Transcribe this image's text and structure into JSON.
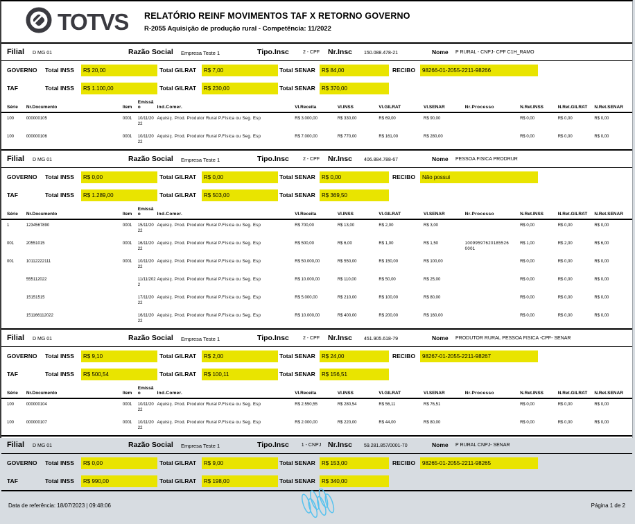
{
  "header": {
    "brand": "TOTVS",
    "title": "RELATÓRIO REINF MOVIMENTOS TAF X RETORNO GOVERNO",
    "subtitle": "R-2055 Aquisição de produção rural  - Competência: 11/2022"
  },
  "labels": {
    "filial": "Filial",
    "razao_social": "Razão Social",
    "tipo_insc": "Tipo.Insc",
    "nr_insc": "Nr.Insc",
    "nome": "Nome",
    "governo": "GOVERNO",
    "taf": "TAF",
    "total_inss": "Total INSS",
    "total_gilrat": "Total GILRAT",
    "total_senar": "Total SENAR",
    "recibo": "RECIBO"
  },
  "table_headers": [
    "Série",
    "Nr.Documento",
    "Item",
    "Emissão",
    "Ind.Comer.",
    "Vl.Receita",
    "Vl.INSS",
    "Vl.GILRAT",
    "Vl.SENAR",
    "Nr.Processo",
    "N.Ret.INSS",
    "N.Ret.GILRAT",
    "N.Ret.SENAR"
  ],
  "sections": [
    {
      "filial": "D MG 01",
      "razao_social": "Empresa Teste 1",
      "tipo_insc": "2 - CPF",
      "nr_insc": "150.088.478-21",
      "nome": "P RURAL - CNPJ- CPF C1H_RAMO",
      "governo": {
        "inss": "R$ 20,00",
        "gilrat": "R$ 7,00",
        "senar": "R$ 84,00",
        "recibo": "98266-01-2055-2211-98266"
      },
      "taf": {
        "inss": "R$ 1.100,00",
        "gilrat": "R$ 230,00",
        "senar": "R$ 370,00"
      },
      "rows": [
        [
          "100",
          "000000105",
          "0001",
          "10/11/2022",
          "Aquisiç. Prod. Produtor Rural P.Física ou Seg. Esp",
          "R$ 3.000,00",
          "R$ 330,00",
          "R$ 69,00",
          "R$ 90,00",
          "",
          "R$ 0,00",
          "R$ 0,00",
          "R$ 0,00"
        ],
        [
          "100",
          "000000106",
          "0001",
          "10/11/2022",
          "Aquisiç. Prod. Produtor Rural P.Física ou Seg. Esp",
          "R$ 7.000,00",
          "R$ 770,00",
          "R$ 161,00",
          "R$ 280,00",
          "",
          "R$ 0,00",
          "R$ 0,00",
          "R$ 0,00"
        ]
      ]
    },
    {
      "filial": "D MG 01",
      "razao_social": "Empresa Teste 1",
      "tipo_insc": "2 - CPF",
      "nr_insc": "406.884.788-67",
      "nome": "PESSOA FISICA PRODRUR",
      "governo": {
        "inss": "R$ 0,00",
        "gilrat": "R$ 0,00",
        "senar": "R$ 0,00",
        "recibo": "Não possui"
      },
      "taf": {
        "inss": "R$ 1.289,00",
        "gilrat": "R$ 503,00",
        "senar": "R$ 369,50"
      },
      "rows": [
        [
          "1",
          "1234567890",
          "0001",
          "15/11/2022",
          "Aquisiç. Prod. Produtor Rural P.Física ou Seg. Esp",
          "R$ 700,00",
          "R$ 13,00",
          "R$ 2,00",
          "R$ 3,00",
          "",
          "R$ 0,00",
          "R$ 0,00",
          "R$ 0,00"
        ],
        [
          "001",
          "20551015",
          "0001",
          "16/11/2022",
          "Aquisiç. Prod. Produtor Rural P.Física ou Seg. Esp",
          "R$ 500,00",
          "R$ 6,00",
          "R$ 1,00",
          "R$ 1,50",
          "10099597620185526 0001",
          "R$ 1,00",
          "R$ 2,00",
          "R$ 6,00"
        ],
        [
          "001",
          "10112222111",
          "0001",
          "10/11/2022",
          "Aquisiç. Prod. Produtor Rural P.Física ou Seg. Esp",
          "R$ 50.000,00",
          "R$ 550,00",
          "R$ 150,00",
          "R$ 100,00",
          "",
          "R$ 0,00",
          "R$ 0,00",
          "R$ 0,00"
        ],
        [
          "",
          "555112022",
          "",
          "11/11/2022",
          "Aquisiç. Prod. Produtor Rural P.Física ou Seg. Esp",
          "R$ 10.000,00",
          "R$ 110,00",
          "R$ 50,00",
          "R$ 25,00",
          "",
          "R$ 0,00",
          "R$ 0,00",
          "R$ 0,00"
        ],
        [
          "",
          "15151515",
          "",
          "17/11/2022",
          "Aquisiç. Prod. Produtor Rural P.Física ou Seg. Esp",
          "R$ 5.000,00",
          "R$ 210,00",
          "R$ 100,00",
          "R$ 80,00",
          "",
          "R$ 0,00",
          "R$ 0,00",
          "R$ 0,00"
        ],
        [
          "",
          "151166112022",
          "",
          "16/11/2022",
          "Aquisiç. Prod. Produtor Rural P.Física ou Seg. Esp",
          "R$ 10.000,00",
          "R$ 400,00",
          "R$ 200,00",
          "R$ 160,00",
          "",
          "R$ 0,00",
          "R$ 0,00",
          "R$ 0,00"
        ]
      ]
    },
    {
      "filial": "D MG 01",
      "razao_social": "Empresa Teste 1",
      "tipo_insc": "2 - CPF",
      "nr_insc": "451.905.618-79",
      "nome": "PRODUTOR RURAL PESSOA FISICA -CPF- SENAR",
      "governo": {
        "inss": "R$ 9,10",
        "gilrat": "R$ 2,00",
        "senar": "R$ 24,00",
        "recibo": "98267-01-2055-2211-98267"
      },
      "taf": {
        "inss": "R$ 500,54",
        "gilrat": "R$ 100,11",
        "senar": "R$ 156,51"
      },
      "rows": [
        [
          "100",
          "000000104",
          "0001",
          "10/11/2022",
          "Aquisiç. Prod. Produtor Rural P.Física ou Seg. Esp",
          "R$ 2.550,55",
          "R$ 280,54",
          "R$ 56,11",
          "R$ 76,51",
          "",
          "R$ 0,00",
          "R$ 0,00",
          "R$ 0,00"
        ],
        [
          "100",
          "000000107",
          "0001",
          "10/11/2022",
          "Aquisiç. Prod. Produtor Rural P.Física ou Seg. Esp",
          "R$ 2.000,00",
          "R$ 220,00",
          "R$ 44,00",
          "R$ 80,00",
          "",
          "R$ 0,00",
          "R$ 0,00",
          "R$ 0,00"
        ]
      ]
    },
    {
      "filial": "D MG 01",
      "razao_social": "Empresa Teste 1",
      "tipo_insc": "1 - CNPJ",
      "nr_insc": "59.281.857/0001-70",
      "nome": "P RURAL CNPJ- SENAR",
      "governo": {
        "inss": "R$ 0,00",
        "gilrat": "R$ 9,00",
        "senar": "R$ 153,00",
        "recibo": "98265-01-2055-2211-98265"
      },
      "taf": {
        "inss": "R$ 990,00",
        "gilrat": "R$ 198,00",
        "senar": "R$ 340,00"
      },
      "rows": []
    }
  ],
  "footer": {
    "reference": "Data de referência:  18/07/2023 | 09:48:06",
    "page": "Página  1  de  2"
  },
  "colors": {
    "highlight": "#e9e400",
    "logo_dark": "#3a3a40",
    "footer_blue": "#58c2ee"
  }
}
